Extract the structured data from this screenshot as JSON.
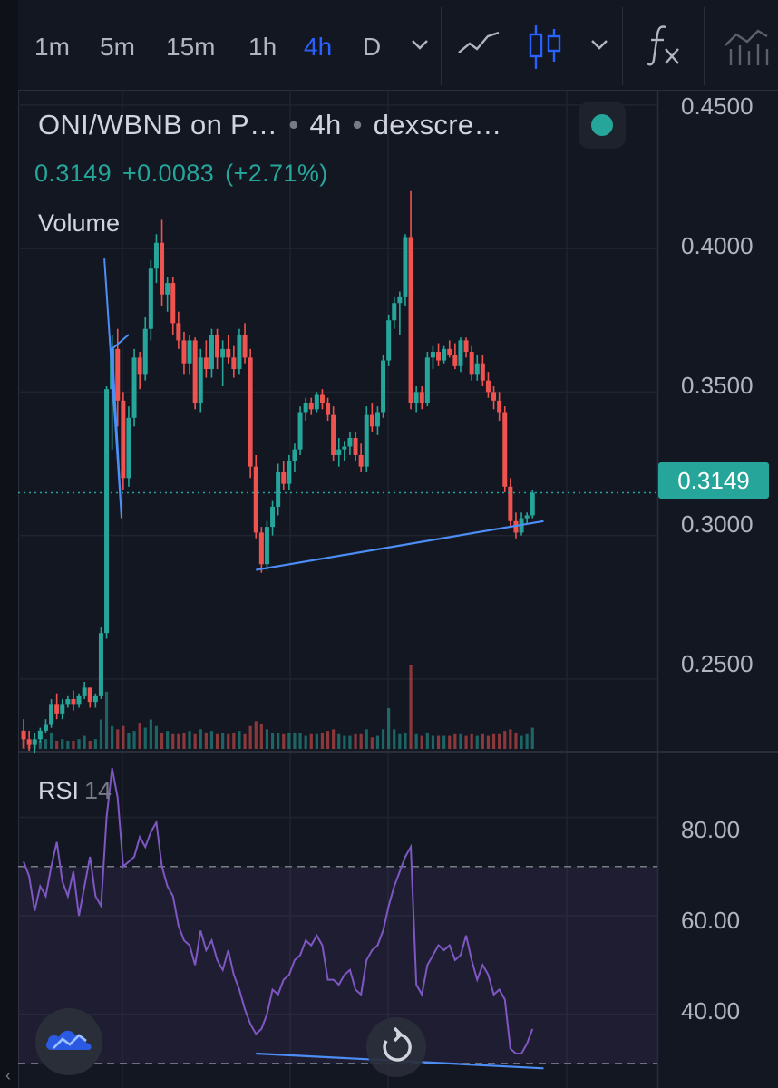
{
  "toolbar": {
    "timeframes": [
      "1m",
      "5m",
      "15m",
      "1h",
      "4h",
      "D"
    ],
    "active_timeframe": "4h"
  },
  "legend": {
    "symbol": "ONI/WBNB on P…",
    "interval": "4h",
    "source": "dexscre…",
    "separator": "•",
    "price": "0.3149",
    "change": "+0.0083",
    "change_pct": "(+2.71%)",
    "volume_label": "Volume"
  },
  "price_scale": {
    "ticks": [
      "0.4500",
      "0.4000",
      "0.3500",
      "0.3000",
      "0.2500"
    ],
    "last_price": "0.3149"
  },
  "rsi": {
    "label": "RSI",
    "length": "14",
    "ticks": [
      "80.00",
      "60.00",
      "40.00"
    ],
    "band_upper": 70,
    "band_lower": 30
  },
  "colors": {
    "background": "#131722",
    "up": "#26a69a",
    "down": "#ef5350",
    "accent": "#2962ff",
    "rsi_line": "#7e57c2",
    "trendline": "#4c8df6"
  },
  "icons": {
    "chart_type": "line-chart-icon",
    "candles": "candlestick-icon",
    "indicators": "fx-icon",
    "more": "chevron-down-icon",
    "fab": "cloud-chart-icon",
    "reset": "reset-icon"
  },
  "chart_data": {
    "type": "candlestick",
    "pair": "ONI/WBNB",
    "interval": "4h",
    "last": 0.3149,
    "change": 0.0083,
    "change_percent": 2.71,
    "ylim": [
      0.225,
      0.455
    ],
    "rsi_ylim": [
      25,
      93
    ],
    "candles": [
      [
        0.232,
        0.236,
        0.226,
        0.229
      ],
      [
        0.229,
        0.232,
        0.225,
        0.227
      ],
      [
        0.227,
        0.231,
        0.224,
        0.229
      ],
      [
        0.229,
        0.233,
        0.228,
        0.232
      ],
      [
        0.232,
        0.236,
        0.231,
        0.234
      ],
      [
        0.234,
        0.243,
        0.233,
        0.241
      ],
      [
        0.241,
        0.245,
        0.236,
        0.238
      ],
      [
        0.238,
        0.243,
        0.236,
        0.241
      ],
      [
        0.241,
        0.244,
        0.24,
        0.243
      ],
      [
        0.243,
        0.246,
        0.239,
        0.241
      ],
      [
        0.241,
        0.245,
        0.24,
        0.244
      ],
      [
        0.244,
        0.249,
        0.243,
        0.247
      ],
      [
        0.247,
        0.247,
        0.24,
        0.242
      ],
      [
        0.242,
        0.245,
        0.24,
        0.244
      ],
      [
        0.244,
        0.268,
        0.243,
        0.266
      ],
      [
        0.266,
        0.352,
        0.264,
        0.351
      ],
      [
        0.351,
        0.37,
        0.33,
        0.365
      ],
      [
        0.365,
        0.372,
        0.338,
        0.347
      ],
      [
        0.347,
        0.35,
        0.316,
        0.32
      ],
      [
        0.32,
        0.345,
        0.317,
        0.341
      ],
      [
        0.341,
        0.365,
        0.338,
        0.362
      ],
      [
        0.362,
        0.364,
        0.351,
        0.356
      ],
      [
        0.356,
        0.376,
        0.354,
        0.372
      ],
      [
        0.372,
        0.396,
        0.368,
        0.393
      ],
      [
        0.393,
        0.405,
        0.388,
        0.402
      ],
      [
        0.402,
        0.41,
        0.38,
        0.384
      ],
      [
        0.384,
        0.39,
        0.378,
        0.388
      ],
      [
        0.388,
        0.39,
        0.37,
        0.374
      ],
      [
        0.374,
        0.378,
        0.365,
        0.368
      ],
      [
        0.368,
        0.371,
        0.356,
        0.36
      ],
      [
        0.36,
        0.37,
        0.356,
        0.368
      ],
      [
        0.368,
        0.369,
        0.344,
        0.346
      ],
      [
        0.346,
        0.365,
        0.343,
        0.362
      ],
      [
        0.362,
        0.368,
        0.355,
        0.358
      ],
      [
        0.358,
        0.372,
        0.355,
        0.37
      ],
      [
        0.37,
        0.372,
        0.358,
        0.362
      ],
      [
        0.362,
        0.368,
        0.352,
        0.365
      ],
      [
        0.365,
        0.37,
        0.36,
        0.362
      ],
      [
        0.362,
        0.366,
        0.355,
        0.358
      ],
      [
        0.358,
        0.372,
        0.356,
        0.37
      ],
      [
        0.37,
        0.374,
        0.36,
        0.362
      ],
      [
        0.362,
        0.365,
        0.32,
        0.324
      ],
      [
        0.324,
        0.328,
        0.299,
        0.301
      ],
      [
        0.301,
        0.303,
        0.287,
        0.29
      ],
      [
        0.29,
        0.305,
        0.288,
        0.303
      ],
      [
        0.303,
        0.312,
        0.3,
        0.31
      ],
      [
        0.31,
        0.325,
        0.307,
        0.322
      ],
      [
        0.322,
        0.326,
        0.316,
        0.318
      ],
      [
        0.318,
        0.328,
        0.316,
        0.326
      ],
      [
        0.326,
        0.332,
        0.322,
        0.33
      ],
      [
        0.33,
        0.345,
        0.328,
        0.343
      ],
      [
        0.343,
        0.348,
        0.34,
        0.346
      ],
      [
        0.346,
        0.348,
        0.342,
        0.344
      ],
      [
        0.344,
        0.35,
        0.343,
        0.349
      ],
      [
        0.349,
        0.351,
        0.344,
        0.346
      ],
      [
        0.346,
        0.348,
        0.34,
        0.342
      ],
      [
        0.342,
        0.345,
        0.326,
        0.328
      ],
      [
        0.328,
        0.334,
        0.324,
        0.33
      ],
      [
        0.33,
        0.333,
        0.326,
        0.331
      ],
      [
        0.331,
        0.336,
        0.328,
        0.334
      ],
      [
        0.334,
        0.336,
        0.326,
        0.328
      ],
      [
        0.328,
        0.332,
        0.322,
        0.324
      ],
      [
        0.324,
        0.345,
        0.322,
        0.342
      ],
      [
        0.342,
        0.346,
        0.336,
        0.338
      ],
      [
        0.338,
        0.345,
        0.335,
        0.343
      ],
      [
        0.343,
        0.363,
        0.341,
        0.361
      ],
      [
        0.361,
        0.377,
        0.359,
        0.375
      ],
      [
        0.375,
        0.383,
        0.372,
        0.381
      ],
      [
        0.381,
        0.385,
        0.37,
        0.383
      ],
      [
        0.383,
        0.405,
        0.38,
        0.404
      ],
      [
        0.404,
        0.42,
        0.344,
        0.346
      ],
      [
        0.346,
        0.352,
        0.343,
        0.35
      ],
      [
        0.35,
        0.352,
        0.344,
        0.346
      ],
      [
        0.346,
        0.364,
        0.345,
        0.362
      ],
      [
        0.362,
        0.366,
        0.358,
        0.364
      ],
      [
        0.364,
        0.367,
        0.359,
        0.361
      ],
      [
        0.361,
        0.366,
        0.36,
        0.365
      ],
      [
        0.365,
        0.368,
        0.362,
        0.363
      ],
      [
        0.363,
        0.367,
        0.358,
        0.359
      ],
      [
        0.359,
        0.369,
        0.357,
        0.368
      ],
      [
        0.368,
        0.369,
        0.362,
        0.364
      ],
      [
        0.364,
        0.366,
        0.354,
        0.356
      ],
      [
        0.356,
        0.363,
        0.354,
        0.36
      ],
      [
        0.36,
        0.363,
        0.352,
        0.354
      ],
      [
        0.354,
        0.357,
        0.348,
        0.35
      ],
      [
        0.35,
        0.352,
        0.344,
        0.347
      ],
      [
        0.347,
        0.35,
        0.34,
        0.343
      ],
      [
        0.343,
        0.345,
        0.315,
        0.317
      ],
      [
        0.317,
        0.32,
        0.303,
        0.305
      ],
      [
        0.305,
        0.308,
        0.299,
        0.301
      ],
      [
        0.301,
        0.308,
        0.3,
        0.306
      ],
      [
        0.306,
        0.308,
        0.304,
        0.307
      ],
      [
        0.307,
        0.316,
        0.306,
        0.3149
      ]
    ],
    "volume": [
      6,
      5,
      4,
      5,
      6,
      10,
      5,
      6,
      5,
      5,
      6,
      8,
      5,
      6,
      18,
      35,
      14,
      12,
      14,
      10,
      11,
      16,
      13,
      18,
      14,
      10,
      11,
      9,
      9,
      10,
      11,
      9,
      12,
      10,
      11,
      9,
      10,
      9,
      10,
      11,
      9,
      14,
      17,
      15,
      12,
      10,
      10,
      9,
      10,
      10,
      10,
      8,
      9,
      9,
      10,
      11,
      12,
      9,
      8,
      8,
      9,
      9,
      12,
      7,
      8,
      12,
      25,
      12,
      9,
      10,
      51,
      9,
      8,
      10,
      8,
      8,
      8,
      8,
      9,
      9,
      8,
      9,
      8,
      9,
      8,
      9,
      9,
      11,
      12,
      10,
      8,
      9,
      13
    ],
    "rsi": [
      71,
      68,
      61,
      66,
      64,
      70,
      75,
      67,
      64,
      69,
      60,
      66,
      72,
      64,
      62,
      80,
      90,
      84,
      70,
      71,
      72,
      76,
      74,
      77,
      79,
      70,
      66,
      64,
      58,
      55,
      54,
      50,
      57,
      53,
      55,
      51,
      49,
      53,
      48,
      45,
      41,
      38,
      36,
      37,
      40,
      45,
      44,
      47,
      48,
      51,
      52,
      55,
      54,
      56,
      54,
      47,
      47,
      46,
      48,
      49,
      45,
      44,
      51,
      53,
      54,
      57,
      62,
      66,
      69,
      72,
      74,
      46,
      44,
      50,
      52,
      54,
      53,
      54,
      51,
      52,
      56,
      51,
      47,
      50,
      48,
      44,
      45,
      43,
      33,
      32,
      32,
      34,
      37
    ],
    "annotations": [
      {
        "type": "trendline",
        "pane": "price",
        "from": [
          42,
          0.288
        ],
        "to": [
          94,
          0.305
        ]
      },
      {
        "type": "trendline",
        "pane": "rsi",
        "from": [
          42,
          32
        ],
        "to": [
          94,
          29
        ]
      },
      {
        "type": "zigzag",
        "pane": "price",
        "points": [
          [
            14.6,
            0.3965
          ],
          [
            17.7,
            0.306
          ],
          [
            16.0,
            0.365
          ],
          [
            19.0,
            0.37
          ]
        ]
      }
    ]
  }
}
